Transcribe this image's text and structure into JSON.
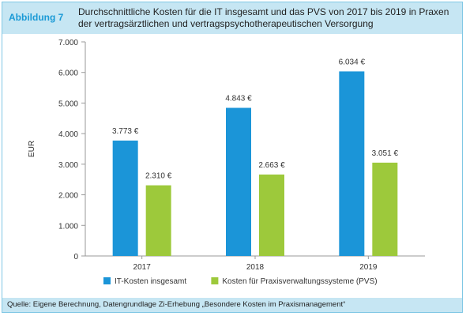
{
  "header": {
    "figure_label": "Abbildung 7",
    "title": "Durchschnittliche Kosten für die IT insgesamt und das PVS von 2017 bis 2019 in Praxen der vertragsärztlichen und vertragspsychotherapeutischen Versorgung"
  },
  "footer": {
    "source": "Quelle: Eigene Berechnung, Datengrundlage Zi-Erhebung „Besondere Kosten im Praxismanagement“"
  },
  "chart_data": {
    "type": "bar",
    "categories": [
      "2017",
      "2018",
      "2019"
    ],
    "series": [
      {
        "name": "IT-Kosten insgesamt",
        "values": [
          3773,
          4843,
          6034
        ],
        "labels": [
          "3.773 €",
          "4.843 €",
          "6.034 €"
        ],
        "color": "#1b95d8"
      },
      {
        "name": "Kosten für Praxisverwaltungssysteme (PVS)",
        "values": [
          2310,
          2663,
          3051
        ],
        "labels": [
          "2.310 €",
          "2.663 €",
          "3.051 €"
        ],
        "color": "#9dc93b"
      }
    ],
    "ylabel": "EUR",
    "ylim": [
      0,
      7000
    ],
    "yticks": [
      0,
      1000,
      2000,
      3000,
      4000,
      5000,
      6000,
      7000
    ],
    "ytick_labels": [
      "0",
      "1.000",
      "2.000",
      "3.000",
      "4.000",
      "5.000",
      "6.000",
      "7.000"
    ],
    "grid": false,
    "legend_position": "bottom"
  }
}
